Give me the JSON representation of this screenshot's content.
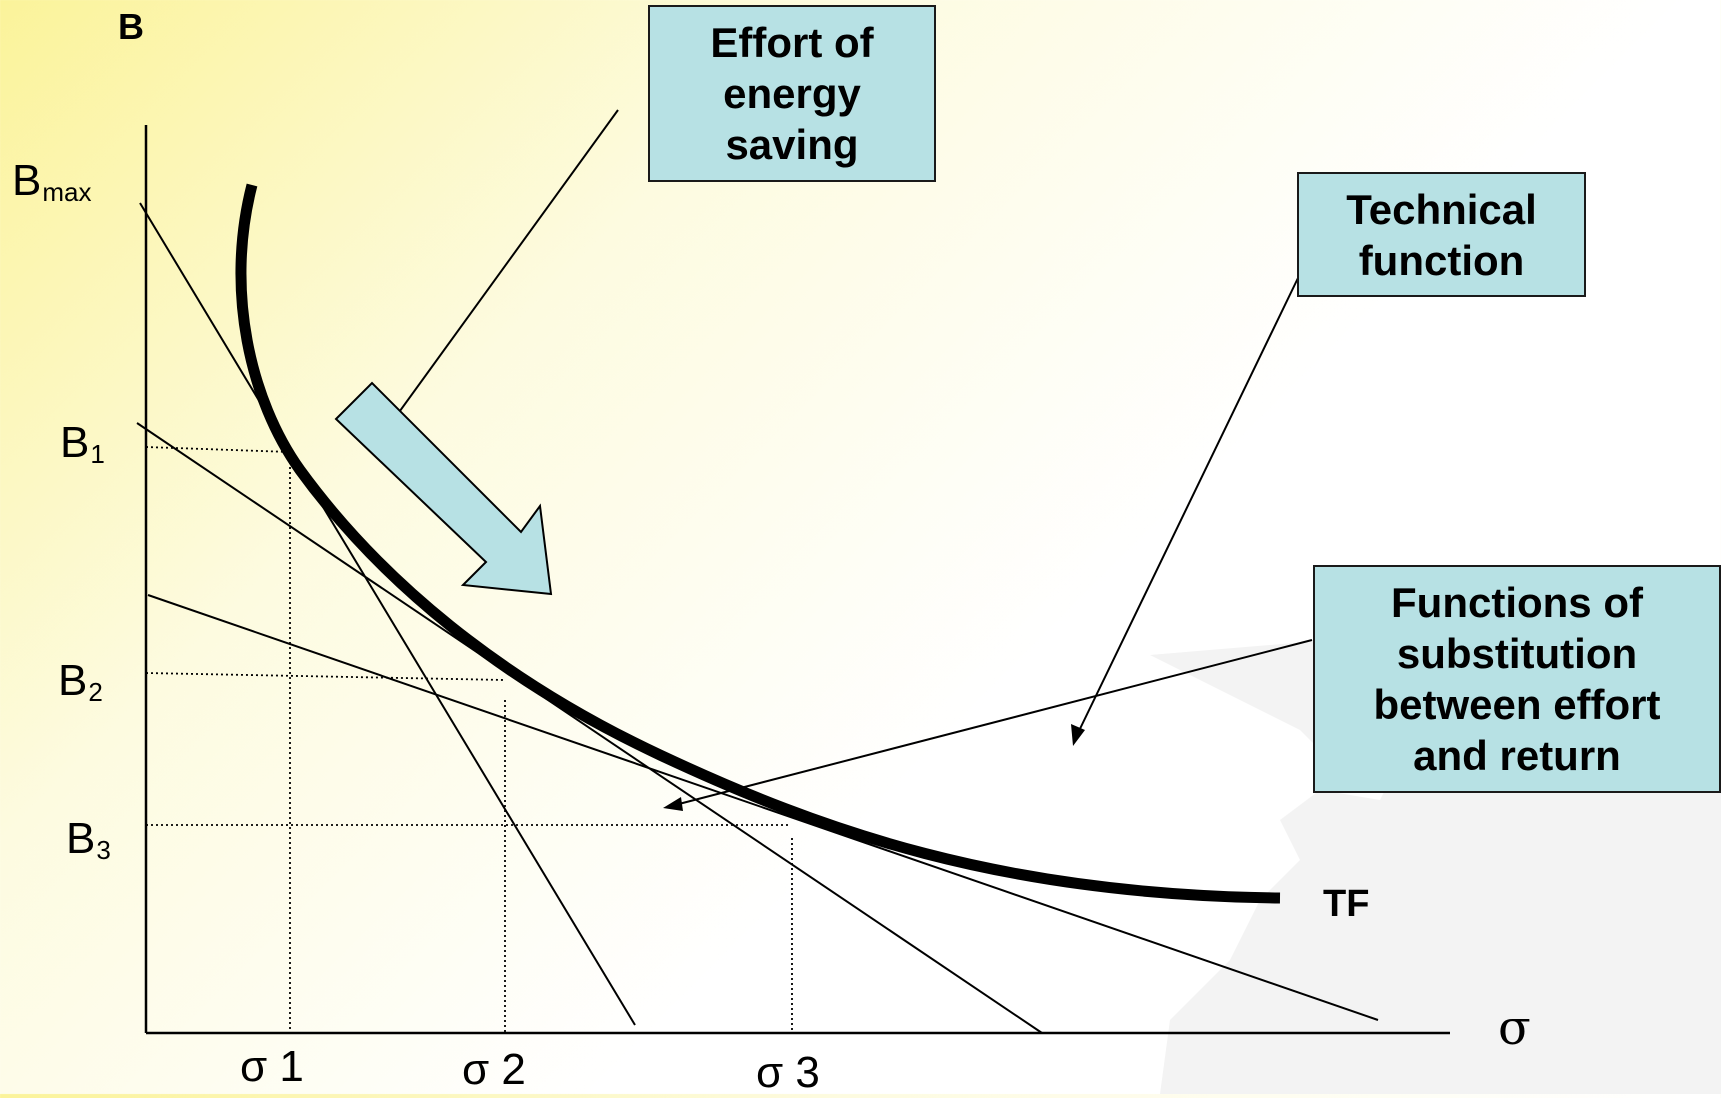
{
  "axis": {
    "y_label": "B",
    "x_label": "σ",
    "y_ticks": [
      {
        "base": "B",
        "sub": "max"
      },
      {
        "base": "B",
        "sub": "1"
      },
      {
        "base": "B",
        "sub": "2"
      },
      {
        "base": "B",
        "sub": "3"
      }
    ],
    "x_ticks": [
      "σ 1",
      "σ 2",
      "σ 3"
    ]
  },
  "curve_label": "TF",
  "boxes": {
    "effort": "Effort of\nenergy\nsaving",
    "technical": "Technical\nfunction",
    "substitution": "Functions of\nsubstitution\nbetween effort\nand return"
  },
  "colors": {
    "box_fill": "#b7e1e4",
    "arrow_fill": "#b7e1e4",
    "line": "#000000",
    "background_highlight": "#fbf39a"
  }
}
